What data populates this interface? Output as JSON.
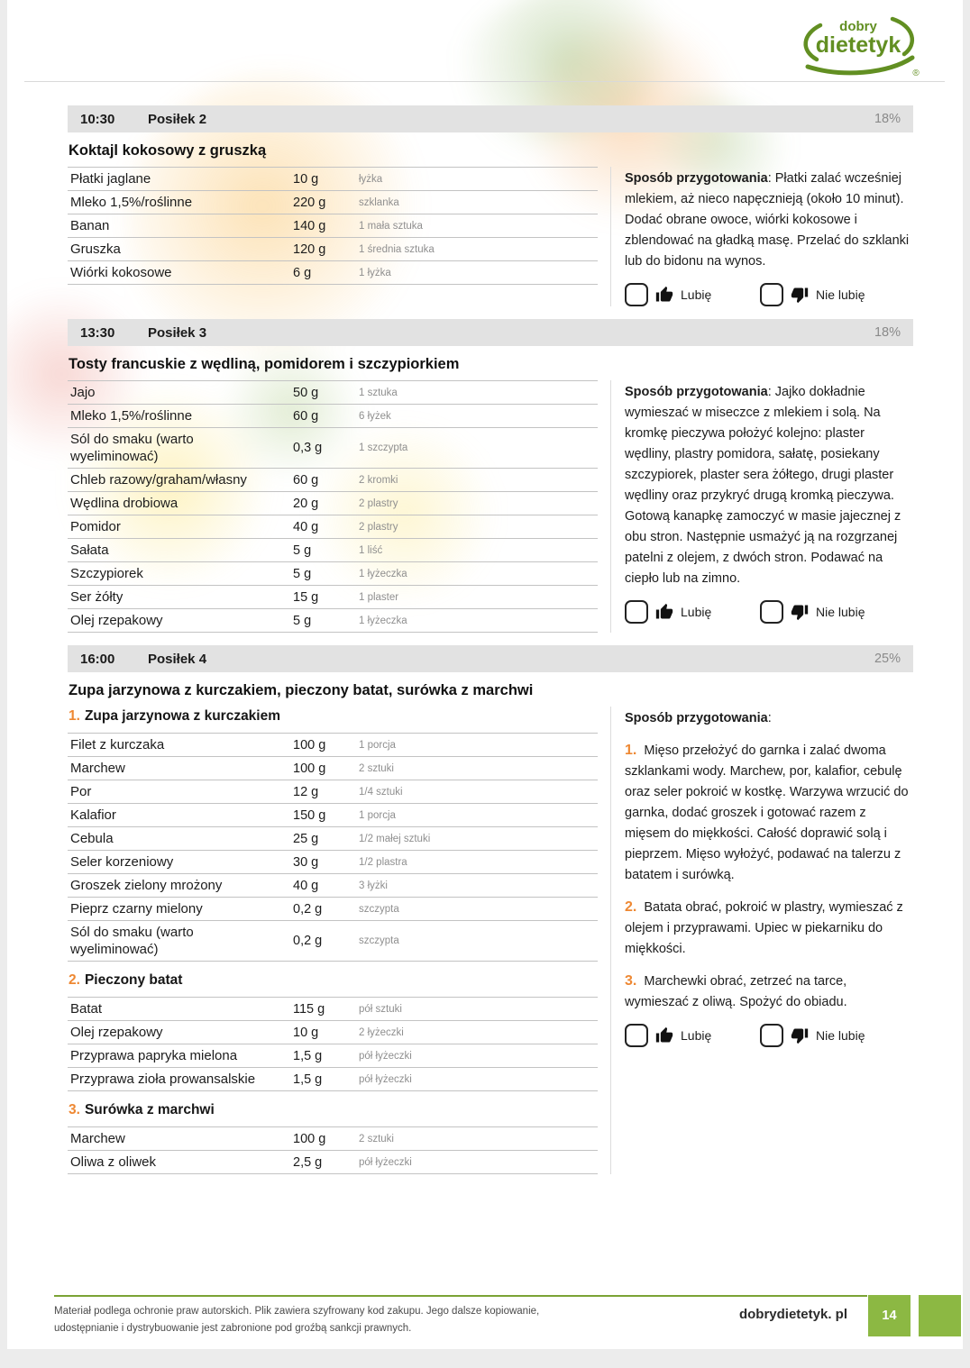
{
  "logo": {
    "line1": "dobry",
    "line2": "dietetyk",
    "registered": "®"
  },
  "labels": {
    "preparation": "Sposób przygotowania",
    "like": "Lubię",
    "dislike": "Nie lubię"
  },
  "colors": {
    "accent_orange": "#ee8833",
    "brand_green": "#8cb843",
    "footer_line_green": "#7ba335",
    "logo_green": "#628f22",
    "header_bar_gray": "#e2e2e2"
  },
  "meals": [
    {
      "time": "10:30",
      "name": "Posiłek 2",
      "percent": "18%",
      "title": "Koktajl kokosowy z gruszką",
      "groups": [
        {
          "number": "",
          "heading": "",
          "rows": [
            [
              "Płatki jaglane",
              "10 g",
              "łyżka"
            ],
            [
              "Mleko 1,5%/roślinne",
              "220 g",
              "szklanka"
            ],
            [
              "Banan",
              "140 g",
              "1 mała sztuka"
            ],
            [
              "Gruszka",
              "120 g",
              "1 średnia sztuka"
            ],
            [
              "Wiórki kokosowe",
              "6 g",
              "1 łyżka"
            ]
          ]
        }
      ],
      "preparation_text": "Płatki zalać wcześniej mlekiem, aż nieco napęcznieją (około 10 minut). Dodać obrane owoce, wiórki kokosowe i zblendować na gładką masę. Przelać do szklanki lub do bidonu na wynos."
    },
    {
      "time": "13:30",
      "name": "Posiłek 3",
      "percent": "18%",
      "title": "Tosty francuskie z wędliną, pomidorem i szczypiorkiem",
      "groups": [
        {
          "number": "",
          "heading": "",
          "rows": [
            [
              "Jajo",
              "50 g",
              "1 sztuka"
            ],
            [
              "Mleko 1,5%/roślinne",
              "60 g",
              "6 łyżek"
            ],
            [
              "Sól do smaku (warto wyeliminować)",
              "0,3 g",
              "1 szczypta"
            ],
            [
              "Chleb razowy/graham/własny",
              "60 g",
              "2 kromki"
            ],
            [
              "Wędlina drobiowa",
              "20 g",
              "2 plastry"
            ],
            [
              "Pomidor",
              "40 g",
              "2 plastry"
            ],
            [
              "Sałata",
              "5 g",
              "1 liść"
            ],
            [
              "Szczypiorek",
              "5 g",
              "1 łyżeczka"
            ],
            [
              "Ser żółty",
              "15 g",
              "1 plaster"
            ],
            [
              "Olej rzepakowy",
              "5 g",
              "1 łyżeczka"
            ]
          ]
        }
      ],
      "preparation_text": "Jajko dokładnie wymieszać w miseczce z mlekiem i solą. Na kromkę pieczywa położyć kolejno: plaster wędliny, plastry pomidora, sałatę, posiekany szczypiorek, plaster sera żółtego, drugi plaster wędliny oraz przykryć drugą kromką pieczywa. Gotową kanapkę zamoczyć w masie jajecznej z obu stron. Następnie usmażyć ją na rozgrzanej patelni z olejem, z dwóch stron. Podawać na ciepło lub na zimno."
    },
    {
      "time": "16:00",
      "name": "Posiłek 4",
      "percent": "25%",
      "title": "Zupa jarzynowa z kurczakiem, pieczony batat, surówka z marchwi",
      "groups": [
        {
          "number": "1.",
          "heading": "Zupa jarzynowa z kurczakiem",
          "rows": [
            [
              "Filet z kurczaka",
              "100 g",
              "1 porcja"
            ],
            [
              "Marchew",
              "100 g",
              "2 sztuki"
            ],
            [
              "Por",
              "12 g",
              "1/4 sztuki"
            ],
            [
              "Kalafior",
              "150 g",
              "1 porcja"
            ],
            [
              "Cebula",
              "25 g",
              "1/2 małej sztuki"
            ],
            [
              "Seler korzeniowy",
              "30 g",
              "1/2 plastra"
            ],
            [
              "Groszek zielony mrożony",
              "40 g",
              "3 łyżki"
            ],
            [
              "Pieprz czarny mielony",
              "0,2 g",
              "szczypta"
            ],
            [
              "Sól do smaku (warto wyeliminować)",
              "0,2 g",
              "szczypta"
            ]
          ]
        },
        {
          "number": "2.",
          "heading": "Pieczony batat",
          "rows": [
            [
              "Batat",
              "115 g",
              "pół sztuki"
            ],
            [
              "Olej rzepakowy",
              "10 g",
              "2 łyżeczki"
            ],
            [
              "Przyprawa papryka mielona",
              "1,5 g",
              "pół łyżeczki"
            ],
            [
              "Przyprawa zioła prowansalskie",
              "1,5 g",
              "pół łyżeczki"
            ]
          ]
        },
        {
          "number": "3.",
          "heading": "Surówka z marchwi",
          "rows": [
            [
              "Marchew",
              "100 g",
              "2 sztuki"
            ],
            [
              "Oliwa z oliwek",
              "2,5 g",
              "pół łyżeczki"
            ]
          ]
        }
      ],
      "preparation_steps": [
        {
          "number": "1.",
          "text": "Mięso przełożyć do garnka i zalać dwoma szklankami wody. Marchew, por, kalafior, cebulę oraz seler pokroić w kostkę. Warzywa wrzucić do garnka, dodać groszek i gotować razem z mięsem do miękkości. Całość doprawić solą i pieprzem. Mięso wyłożyć, podawać na talerzu z batatem i surówką."
        },
        {
          "number": "2.",
          "text": "Batata obrać, pokroić w plastry, wymieszać z olejem i przyprawami. Upiec w piekarniku do miękkości."
        },
        {
          "number": "3.",
          "text": "Marchewki obrać, zetrzeć na tarce, wymieszać z oliwą. Spożyć do obiadu."
        }
      ]
    }
  ],
  "footer": {
    "disclaimer": "Materiał podlega ochronie praw autorskich. Plik zawiera szyfrowany kod zakupu. Jego dalsze kopiowanie, udostępnianie i dystrybuowanie jest zabronione pod groźbą sankcji prawnych.",
    "site": "dobrydietetyk. pl",
    "page_number": "14"
  }
}
